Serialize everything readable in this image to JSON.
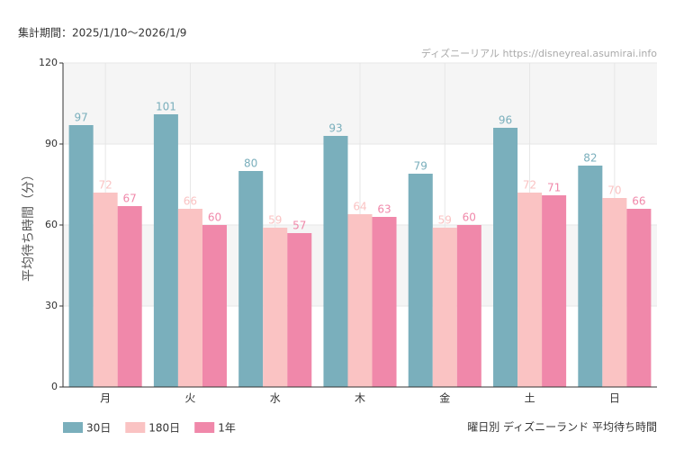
{
  "chart_data": {
    "type": "bar",
    "subtitle": "集計期間：2025/1/10〜2026/1/9",
    "source": "ディズニーリアル https://disneyreal.asumirai.info",
    "caption": "曜日別 ディズニーランド 平均待ち時間",
    "y_label": "平均待ち時間（分）",
    "categories": [
      "月",
      "火",
      "水",
      "木",
      "金",
      "土",
      "日"
    ],
    "series": [
      {
        "name": "30日",
        "color": "#7aafbc",
        "values": [
          97,
          101,
          80,
          93,
          79,
          96,
          82
        ]
      },
      {
        "name": "180日",
        "color": "#fac3c3",
        "values": [
          72,
          66,
          59,
          64,
          59,
          72,
          70
        ]
      },
      {
        "name": "1年",
        "color": "#f088aa",
        "values": [
          67,
          60,
          57,
          63,
          60,
          71,
          66
        ]
      }
    ],
    "ylim": [
      0,
      120
    ],
    "yticks": [
      0,
      30,
      60,
      90,
      120
    ],
    "grid": true,
    "legend": "bottom-left"
  }
}
